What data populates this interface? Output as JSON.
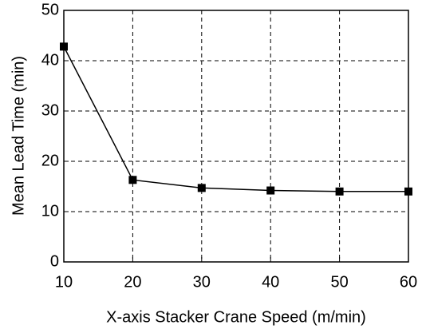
{
  "chart_data": {
    "type": "line",
    "xlabel": "X-axis Stacker Crane Speed (m/min)",
    "ylabel": "Mean Lead Time (min)",
    "x": [
      10,
      20,
      30,
      40,
      50,
      60
    ],
    "series": [
      {
        "color": "#000000",
        "values": [
          42.8,
          16.3,
          14.7,
          14.2,
          14.0,
          14.0
        ]
      }
    ],
    "xlim": [
      10,
      60
    ],
    "xticks": [
      10,
      20,
      30,
      40,
      50,
      60
    ],
    "ylim": [
      0,
      50
    ],
    "yticks": [
      0,
      10,
      20,
      30,
      40,
      50
    ],
    "grid": true
  }
}
